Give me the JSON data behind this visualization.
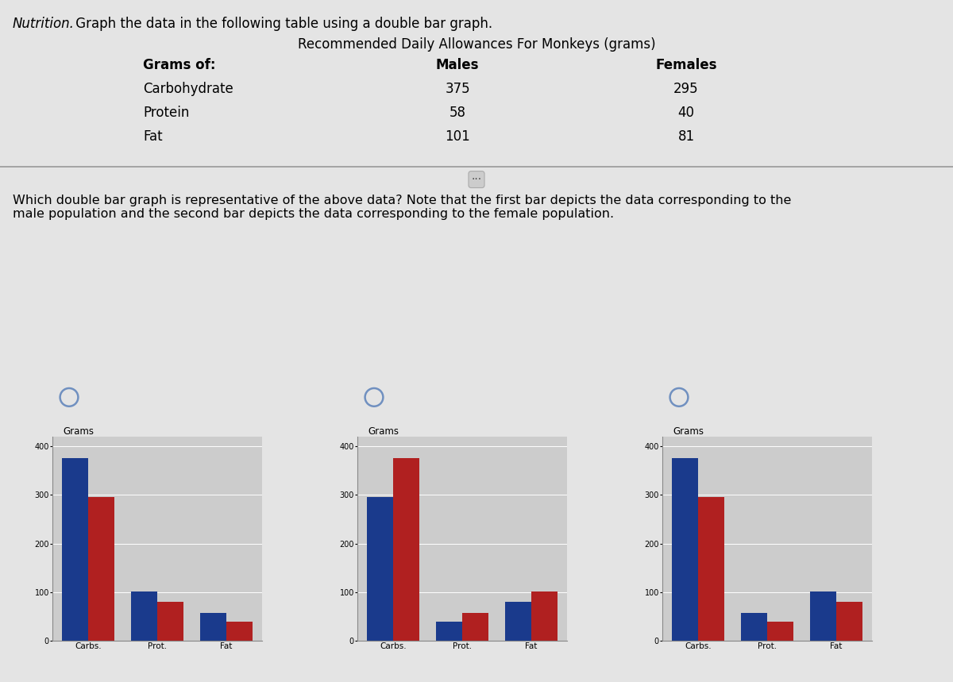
{
  "title_italic": "Nutrition.",
  "title_text": " Graph the data in the following table using a double bar graph.",
  "table_title": "Recommended Daily Allowances For Monkeys (grams)",
  "table_headers": [
    "Grams of:",
    "Males",
    "Females"
  ],
  "table_rows": [
    [
      "Carbohydrate",
      375,
      295
    ],
    [
      "Protein",
      58,
      40
    ],
    [
      "Fat",
      101,
      81
    ]
  ],
  "question_text": "Which double bar graph is representative of the above data? Note that the first bar depicts the data corresponding to the\nmale population and the second bar depicts the data corresponding to the female population.",
  "categories": [
    "Carbs.",
    "Prot.",
    "Fat"
  ],
  "male_color": "#1a3a8c",
  "female_color": "#b02020",
  "ylabel": "Grams",
  "yticks": [
    0,
    100,
    200,
    300,
    400
  ],
  "ylim": [
    0,
    420
  ],
  "bg_color": "#e4e4e4",
  "chart_data": [
    {
      "males": [
        375,
        101,
        58
      ],
      "females": [
        295,
        81,
        40
      ]
    },
    {
      "males": [
        295,
        40,
        81
      ],
      "females": [
        375,
        58,
        101
      ]
    },
    {
      "males": [
        375,
        58,
        101
      ],
      "females": [
        295,
        40,
        81
      ]
    }
  ]
}
